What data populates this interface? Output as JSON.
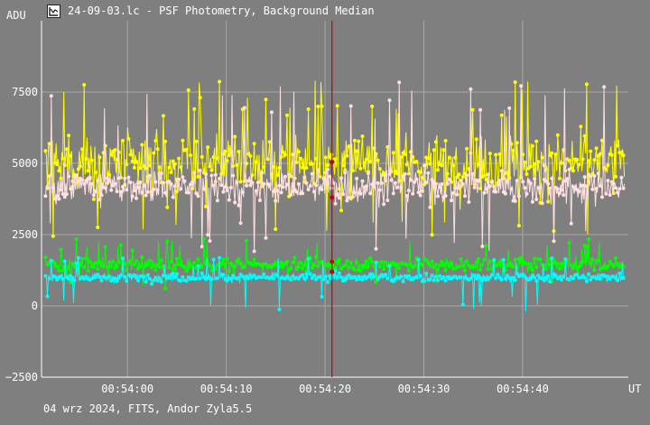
{
  "window": {
    "title": "24-09-03.lc - PSF Photometry, Background Median",
    "icon": "light-curve-app-icon"
  },
  "footer": {
    "text": "04 wrz 2024, FITS, Andor Zyla5.5"
  },
  "colors": {
    "background": "#7f7f7f",
    "grid": "#a8a8a8",
    "axis": "#ffffff",
    "cursor": "#cc0000"
  },
  "chart_data": {
    "type": "scatter",
    "ylabel": "ADU",
    "xlabel": "UT",
    "ylim": [
      -2500,
      10000
    ],
    "xlim": [
      "00:53:51.3",
      "00:54:50.7"
    ],
    "grid": true,
    "yticks": [
      -2500,
      0,
      2500,
      5000,
      7500
    ],
    "yticklabels": [
      "−2500",
      "0",
      "2500",
      "5000",
      "7500"
    ],
    "xticks": [
      "00:54:00",
      "00:54:10",
      "00:54:20",
      "00:54:30",
      "00:54:40"
    ],
    "cursor_time": "00:54:20.7",
    "cursor_values": [
      5050,
      3800,
      1550,
      1200
    ],
    "series": [
      {
        "color": "#ffff00",
        "mean": 5000,
        "spread": 900,
        "peak_max": 7900,
        "outlier_min": 2350
      },
      {
        "color": "#ffdfdf",
        "mean": 4200,
        "spread": 500,
        "peak_max": 7850,
        "outlier_min": 1900
      },
      {
        "color": "#00ff00",
        "mean": 1450,
        "spread": 200,
        "peak_max": 2350,
        "outlier_min": 600
      },
      {
        "color": "#00ffff",
        "mean": 1000,
        "spread": 130,
        "peak_max": 1700,
        "outlier_min": -200
      }
    ],
    "n_points": 600
  }
}
